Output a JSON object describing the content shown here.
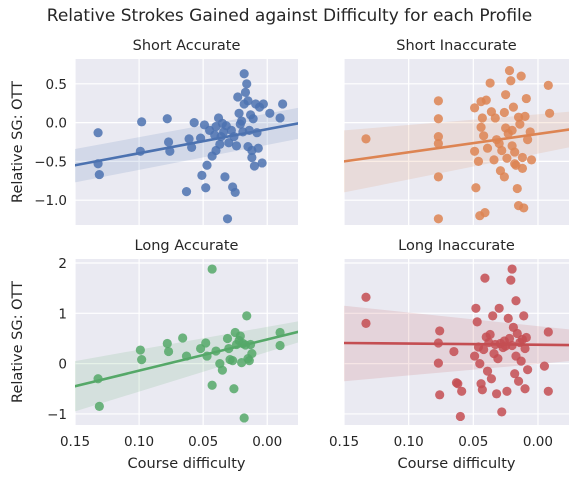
{
  "figure": {
    "title": "Relative Strokes Gained against Difficulty for each Profile"
  },
  "chart_data": [
    {
      "type": "scatter",
      "title": "Short Accurate",
      "xlabel": "",
      "ylabel": "Relative SG: OTT",
      "xlim": [
        0.15,
        -0.024
      ],
      "ylim": [
        -1.32,
        0.82
      ],
      "xticks": [],
      "xtick_labels": [],
      "yticks": [
        0.5,
        0.0,
        -0.5,
        -1.0
      ],
      "ytick_labels": [
        "0.5",
        "0.0",
        "−0.5",
        "−1.0"
      ],
      "color": "#4c72b0",
      "grid": true,
      "regression": {
        "x": [
          0.15,
          -0.024
        ],
        "y": [
          -0.55,
          -0.01
        ],
        "ci_lower": [
          -0.77,
          -0.21
        ],
        "ci_upper": [
          -0.34,
          0.19
        ]
      },
      "points": [
        {
          "x": 0.132,
          "y": -0.13
        },
        {
          "x": 0.132,
          "y": -0.53
        },
        {
          "x": 0.131,
          "y": -0.67
        },
        {
          "x": 0.098,
          "y": 0.01
        },
        {
          "x": 0.099,
          "y": -0.37
        },
        {
          "x": 0.078,
          "y": 0.05
        },
        {
          "x": 0.077,
          "y": -0.25
        },
        {
          "x": 0.076,
          "y": -0.37
        },
        {
          "x": 0.063,
          "y": -0.89
        },
        {
          "x": 0.061,
          "y": -0.21
        },
        {
          "x": 0.059,
          "y": -0.32
        },
        {
          "x": 0.057,
          "y": 0.0
        },
        {
          "x": 0.052,
          "y": -0.2
        },
        {
          "x": 0.051,
          "y": -0.68
        },
        {
          "x": 0.049,
          "y": -0.03
        },
        {
          "x": 0.048,
          "y": -0.84
        },
        {
          "x": 0.047,
          "y": -0.55
        },
        {
          "x": 0.045,
          "y": -0.1
        },
        {
          "x": 0.043,
          "y": -0.43
        },
        {
          "x": 0.041,
          "y": -0.16
        },
        {
          "x": 0.04,
          "y": -0.05
        },
        {
          "x": 0.04,
          "y": -0.36
        },
        {
          "x": 0.038,
          "y": 0.06
        },
        {
          "x": 0.037,
          "y": -0.28
        },
        {
          "x": 0.036,
          "y": -0.18
        },
        {
          "x": 0.035,
          "y": -0.01
        },
        {
          "x": 0.034,
          "y": -0.12
        },
        {
          "x": 0.033,
          "y": -0.7
        },
        {
          "x": 0.032,
          "y": -0.04
        },
        {
          "x": 0.031,
          "y": -1.24
        },
        {
          "x": 0.03,
          "y": -0.26
        },
        {
          "x": 0.028,
          "y": -0.1
        },
        {
          "x": 0.027,
          "y": -0.83
        },
        {
          "x": 0.026,
          "y": -0.18
        },
        {
          "x": 0.025,
          "y": -0.9
        },
        {
          "x": 0.024,
          "y": -0.3
        },
        {
          "x": 0.023,
          "y": 0.33
        },
        {
          "x": 0.022,
          "y": 0.12
        },
        {
          "x": 0.021,
          "y": -0.02
        },
        {
          "x": 0.02,
          "y": 0.02
        },
        {
          "x": 0.019,
          "y": -0.12
        },
        {
          "x": 0.018,
          "y": 0.24
        },
        {
          "x": 0.018,
          "y": 0.63
        },
        {
          "x": 0.017,
          "y": 0.39
        },
        {
          "x": 0.016,
          "y": 0.5
        },
        {
          "x": 0.015,
          "y": 0.28
        },
        {
          "x": 0.015,
          "y": -0.31
        },
        {
          "x": 0.014,
          "y": -0.1
        },
        {
          "x": 0.013,
          "y": 0.1
        },
        {
          "x": 0.012,
          "y": -0.36
        },
        {
          "x": 0.012,
          "y": -0.45
        },
        {
          "x": 0.011,
          "y": 0.05
        },
        {
          "x": 0.01,
          "y": -0.56
        },
        {
          "x": 0.009,
          "y": 0.24
        },
        {
          "x": 0.008,
          "y": -0.13
        },
        {
          "x": 0.007,
          "y": -0.33
        },
        {
          "x": 0.006,
          "y": 0.2
        },
        {
          "x": 0.004,
          "y": -0.52
        },
        {
          "x": 0.003,
          "y": 0.24
        },
        {
          "x": -0.002,
          "y": 0.12
        },
        {
          "x": -0.01,
          "y": 0.06
        },
        {
          "x": -0.012,
          "y": 0.24
        }
      ]
    },
    {
      "type": "scatter",
      "title": "Short Inaccurate",
      "xlabel": "",
      "ylabel": "",
      "xlim": [
        0.15,
        -0.024
      ],
      "ylim": [
        -1.32,
        0.82
      ],
      "xticks": [],
      "xtick_labels": [],
      "yticks": [],
      "ytick_labels": [],
      "color": "#dd8452",
      "grid": true,
      "regression": {
        "x": [
          0.15,
          -0.024
        ],
        "y": [
          -0.5,
          -0.09
        ],
        "ci_lower": [
          -0.9,
          -0.32
        ],
        "ci_upper": [
          -0.1,
          0.14
        ]
      },
      "points": [
        {
          "x": 0.133,
          "y": -0.21
        },
        {
          "x": 0.077,
          "y": 0.28
        },
        {
          "x": 0.077,
          "y": 0.05
        },
        {
          "x": 0.077,
          "y": -0.18
        },
        {
          "x": 0.077,
          "y": -0.27
        },
        {
          "x": 0.077,
          "y": -0.7
        },
        {
          "x": 0.077,
          "y": -1.24
        },
        {
          "x": 0.049,
          "y": 0.19
        },
        {
          "x": 0.049,
          "y": -0.37
        },
        {
          "x": 0.048,
          "y": -0.84
        },
        {
          "x": 0.046,
          "y": -0.5
        },
        {
          "x": 0.045,
          "y": -1.2
        },
        {
          "x": 0.044,
          "y": 0.27
        },
        {
          "x": 0.044,
          "y": -0.06
        },
        {
          "x": 0.043,
          "y": 0.06
        },
        {
          "x": 0.042,
          "y": -0.17
        },
        {
          "x": 0.041,
          "y": -1.16
        },
        {
          "x": 0.04,
          "y": 0.29
        },
        {
          "x": 0.039,
          "y": -0.33
        },
        {
          "x": 0.037,
          "y": 0.51
        },
        {
          "x": 0.036,
          "y": 0.14
        },
        {
          "x": 0.034,
          "y": -0.48
        },
        {
          "x": 0.033,
          "y": 0.06
        },
        {
          "x": 0.032,
          "y": -0.22
        },
        {
          "x": 0.03,
          "y": -0.27
        },
        {
          "x": 0.029,
          "y": -0.62
        },
        {
          "x": 0.028,
          "y": -0.36
        },
        {
          "x": 0.026,
          "y": 0.13
        },
        {
          "x": 0.026,
          "y": -0.7
        },
        {
          "x": 0.025,
          "y": 0.36
        },
        {
          "x": 0.025,
          "y": -0.07
        },
        {
          "x": 0.024,
          "y": -0.46
        },
        {
          "x": 0.023,
          "y": -0.14
        },
        {
          "x": 0.022,
          "y": 0.67
        },
        {
          "x": 0.021,
          "y": 0.54
        },
        {
          "x": 0.02,
          "y": -0.1
        },
        {
          "x": 0.02,
          "y": -0.3
        },
        {
          "x": 0.019,
          "y": 0.2
        },
        {
          "x": 0.018,
          "y": -0.38
        },
        {
          "x": 0.018,
          "y": -0.53
        },
        {
          "x": 0.017,
          "y": -0.55
        },
        {
          "x": 0.016,
          "y": -0.85
        },
        {
          "x": 0.015,
          "y": 0.07
        },
        {
          "x": 0.015,
          "y": -1.07
        },
        {
          "x": 0.014,
          "y": -0.02
        },
        {
          "x": 0.013,
          "y": 0.6
        },
        {
          "x": 0.012,
          "y": -0.45
        },
        {
          "x": 0.012,
          "y": -0.59
        },
        {
          "x": 0.011,
          "y": -1.1
        },
        {
          "x": 0.01,
          "y": 0.08
        },
        {
          "x": 0.009,
          "y": 0.31
        },
        {
          "x": 0.008,
          "y": -0.22
        },
        {
          "x": 0.006,
          "y": -0.12
        },
        {
          "x": 0.005,
          "y": -0.48
        },
        {
          "x": -0.008,
          "y": 0.48
        },
        {
          "x": -0.009,
          "y": 0.12
        }
      ]
    },
    {
      "type": "scatter",
      "title": "Long Accurate",
      "xlabel": "Course difficulty",
      "ylabel": "Relative SG: OTT",
      "xlim": [
        0.15,
        -0.024
      ],
      "ylim": [
        -1.22,
        2.08
      ],
      "xticks": [
        0.15,
        0.1,
        0.05,
        0.0
      ],
      "xtick_labels": [
        "0.15",
        "0.10",
        "0.05",
        "0.00"
      ],
      "yticks": [
        2,
        1,
        0,
        -1
      ],
      "ytick_labels": [
        "2",
        "1",
        "0",
        "−1"
      ],
      "color": "#55a868",
      "grid": true,
      "regression": {
        "x": [
          0.15,
          -0.024
        ],
        "y": [
          -0.45,
          0.63
        ],
        "ci_lower": [
          -0.95,
          0.42
        ],
        "ci_upper": [
          0.05,
          0.84
        ]
      },
      "points": [
        {
          "x": 0.132,
          "y": -0.3
        },
        {
          "x": 0.131,
          "y": -0.85
        },
        {
          "x": 0.099,
          "y": 0.27
        },
        {
          "x": 0.098,
          "y": 0.08
        },
        {
          "x": 0.078,
          "y": 0.4
        },
        {
          "x": 0.077,
          "y": 0.24
        },
        {
          "x": 0.066,
          "y": 0.51
        },
        {
          "x": 0.063,
          "y": 0.15
        },
        {
          "x": 0.052,
          "y": 0.3
        },
        {
          "x": 0.048,
          "y": 0.41
        },
        {
          "x": 0.047,
          "y": 0.15
        },
        {
          "x": 0.043,
          "y": -0.43
        },
        {
          "x": 0.043,
          "y": 1.88
        },
        {
          "x": 0.04,
          "y": 0.25
        },
        {
          "x": 0.037,
          "y": 0.0
        },
        {
          "x": 0.035,
          "y": -0.13
        },
        {
          "x": 0.031,
          "y": 0.5
        },
        {
          "x": 0.03,
          "y": 0.3
        },
        {
          "x": 0.029,
          "y": 0.08
        },
        {
          "x": 0.027,
          "y": 0.06
        },
        {
          "x": 0.026,
          "y": -0.5
        },
        {
          "x": 0.025,
          "y": 0.62
        },
        {
          "x": 0.024,
          "y": 0.38
        },
        {
          "x": 0.022,
          "y": 0.46
        },
        {
          "x": 0.021,
          "y": 0.55
        },
        {
          "x": 0.02,
          "y": 0.02
        },
        {
          "x": 0.019,
          "y": 0.4
        },
        {
          "x": 0.018,
          "y": -1.08
        },
        {
          "x": 0.017,
          "y": 0.37
        },
        {
          "x": 0.016,
          "y": 0.95
        },
        {
          "x": 0.015,
          "y": 0.1
        },
        {
          "x": 0.014,
          "y": 0.06
        },
        {
          "x": 0.013,
          "y": 0.38
        },
        {
          "x": 0.012,
          "y": 0.2
        },
        {
          "x": -0.01,
          "y": 0.62
        },
        {
          "x": -0.01,
          "y": 0.36
        }
      ]
    },
    {
      "type": "scatter",
      "title": "Long Inaccurate",
      "xlabel": "Course difficulty",
      "ylabel": "",
      "xlim": [
        0.15,
        -0.024
      ],
      "ylim": [
        -1.22,
        2.08
      ],
      "xticks": [
        0.15,
        0.1,
        0.05,
        0.0
      ],
      "xtick_labels": [
        "0.15",
        "0.10",
        "0.05",
        "0.00"
      ],
      "yticks": [],
      "ytick_labels": [],
      "color": "#c44e52",
      "grid": true,
      "regression": {
        "x": [
          0.15,
          -0.024
        ],
        "y": [
          0.41,
          0.37
        ],
        "ci_lower": [
          -0.35,
          0.05
        ],
        "ci_upper": [
          1.15,
          0.68
        ]
      },
      "points": [
        {
          "x": 0.133,
          "y": 1.32
        },
        {
          "x": 0.133,
          "y": 0.8
        },
        {
          "x": 0.077,
          "y": 0.41
        },
        {
          "x": 0.077,
          "y": 0.01
        },
        {
          "x": 0.076,
          "y": 0.65
        },
        {
          "x": 0.076,
          "y": -0.62
        },
        {
          "x": 0.065,
          "y": 0.24
        },
        {
          "x": 0.063,
          "y": -0.38
        },
        {
          "x": 0.062,
          "y": -0.4
        },
        {
          "x": 0.06,
          "y": -1.05
        },
        {
          "x": 0.059,
          "y": -0.55
        },
        {
          "x": 0.049,
          "y": 0.15
        },
        {
          "x": 0.048,
          "y": 1.1
        },
        {
          "x": 0.047,
          "y": 0.83
        },
        {
          "x": 0.046,
          "y": 0.33
        },
        {
          "x": 0.045,
          "y": 0.0
        },
        {
          "x": 0.044,
          "y": -0.4
        },
        {
          "x": 0.043,
          "y": -0.52
        },
        {
          "x": 0.042,
          "y": 0.28
        },
        {
          "x": 0.041,
          "y": 1.7
        },
        {
          "x": 0.04,
          "y": 0.53
        },
        {
          "x": 0.039,
          "y": -0.15
        },
        {
          "x": 0.038,
          "y": 0.42
        },
        {
          "x": 0.037,
          "y": 0.58
        },
        {
          "x": 0.036,
          "y": -0.3
        },
        {
          "x": 0.035,
          "y": 0.95
        },
        {
          "x": 0.034,
          "y": 0.2
        },
        {
          "x": 0.033,
          "y": 0.38
        },
        {
          "x": 0.032,
          "y": -0.6
        },
        {
          "x": 0.031,
          "y": 0.1
        },
        {
          "x": 0.03,
          "y": 1.1
        },
        {
          "x": 0.029,
          "y": 0.4
        },
        {
          "x": 0.028,
          "y": -0.96
        },
        {
          "x": 0.027,
          "y": 0.32
        },
        {
          "x": 0.026,
          "y": 0.45
        },
        {
          "x": 0.025,
          "y": 0.35
        },
        {
          "x": 0.024,
          "y": -0.55
        },
        {
          "x": 0.023,
          "y": 0.9
        },
        {
          "x": 0.022,
          "y": 0.5
        },
        {
          "x": 0.021,
          "y": 1.66
        },
        {
          "x": 0.02,
          "y": 0.36
        },
        {
          "x": 0.02,
          "y": 1.88
        },
        {
          "x": 0.019,
          "y": 0.72
        },
        {
          "x": 0.018,
          "y": -0.2
        },
        {
          "x": 0.017,
          "y": 1.25
        },
        {
          "x": 0.017,
          "y": 0.15
        },
        {
          "x": 0.016,
          "y": 0.6
        },
        {
          "x": 0.015,
          "y": -0.35
        },
        {
          "x": 0.014,
          "y": 0.42
        },
        {
          "x": 0.013,
          "y": 0.05
        },
        {
          "x": 0.012,
          "y": 0.48
        },
        {
          "x": 0.011,
          "y": 0.95
        },
        {
          "x": 0.01,
          "y": -0.5
        },
        {
          "x": 0.01,
          "y": 0.3
        },
        {
          "x": 0.009,
          "y": 0.52
        },
        {
          "x": 0.008,
          "y": -0.12
        },
        {
          "x": -0.005,
          "y": -0.05
        },
        {
          "x": -0.008,
          "y": 0.63
        },
        {
          "x": -0.008,
          "y": -0.55
        }
      ]
    }
  ]
}
